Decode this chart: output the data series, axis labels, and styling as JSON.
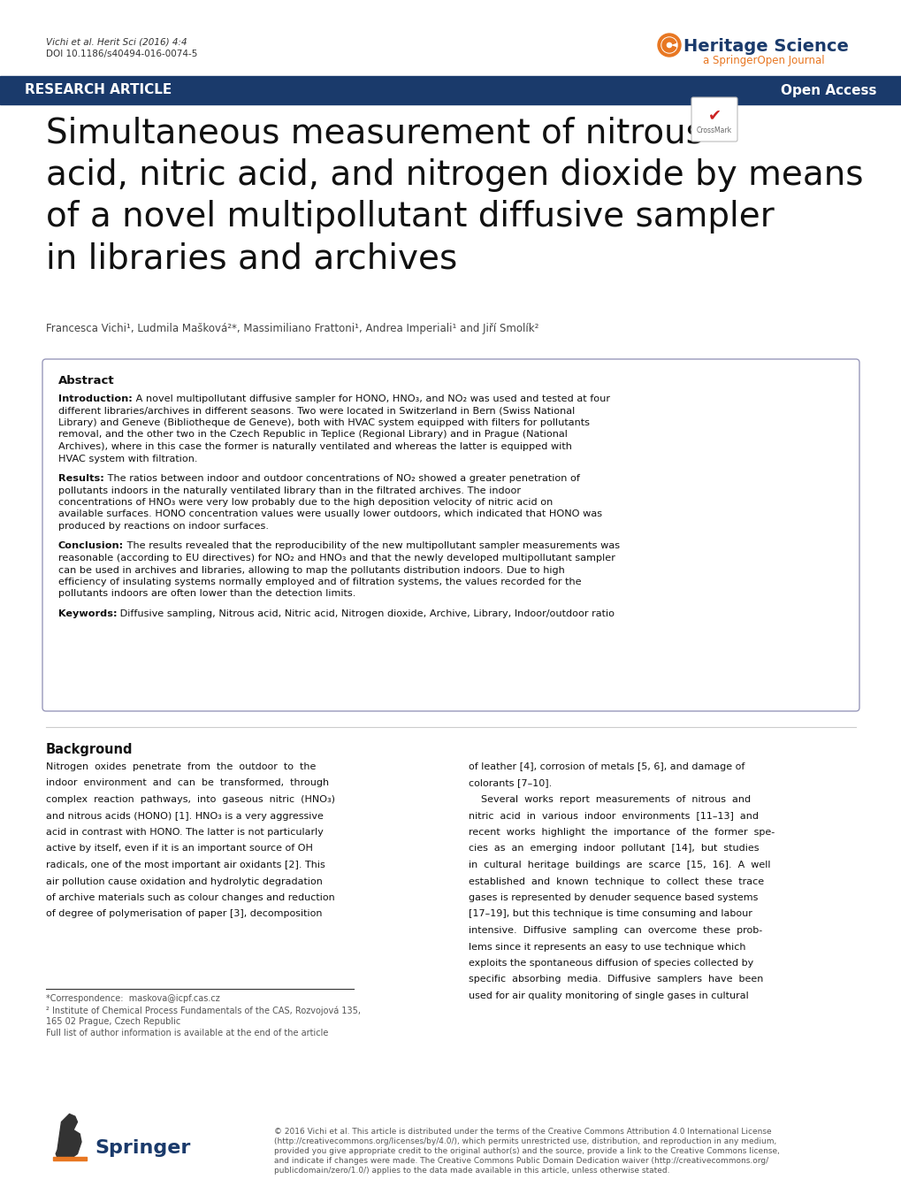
{
  "bg_color": "#ffffff",
  "header_bar_color": "#1a3a6b",
  "header_text_color": "#ffffff",
  "header_left": "RESEARCH ARTICLE",
  "header_right": "Open Access",
  "journal_name": "Heritage Science",
  "journal_subtitle": "a SpringerOpen Journal",
  "journal_name_color": "#1a3a6b",
  "journal_subtitle_color": "#e87722",
  "journal_icon_color": "#e87722",
  "citation_line1": "Vichi et al. Herit Sci (2016) 4:4",
  "citation_line2": "DOI 10.1186/s40494-016-0074-5",
  "citation_color": "#333333",
  "title_line1": "Simultaneous measurement of nitrous",
  "title_line2": "acid, nitric acid, and nitrogen dioxide by means",
  "title_line3": "of a novel multipollutant diffusive sampler",
  "title_line4": "in libraries and archives",
  "title_color": "#111111",
  "title_fontsize": 28,
  "authors": "Francesca Vichi¹, Ludmila Mašková²*, Massimiliano Frattoni¹, Andrea Imperiali¹ and Jiří Smolík²",
  "authors_color": "#444444",
  "abstract_title": "Abstract",
  "abstract_intro_bold": "Introduction:",
  "abstract_intro_text": " A novel multipollutant diffusive sampler for HONO, HNO₃, and NO₂ was used and tested at four different libraries/archives in different seasons. Two were located in Switzerland in Bern (Swiss National Library) and Geneve (Bibliotheque de Geneve), both with HVAC system equipped with filters for pollutants removal, and the other two in the Czech Republic in Teplice (Regional Library) and in Prague (National Archives), where in this case the former is naturally ventilated and whereas the latter is equipped with HVAC system with filtration.",
  "abstract_results_bold": "Results:",
  "abstract_results_text": " The ratios between indoor and outdoor concentrations of NO₂ showed a greater penetration of pollutants indoors in the naturally ventilated library than in the filtrated archives. The indoor concentrations of HNO₃ were very low probably due to the high deposition velocity of nitric acid on available surfaces. HONO concentration values were usually lower outdoors, which indicated that HONO was produced by reactions on indoor surfaces.",
  "abstract_conclusion_bold": "Conclusion:",
  "abstract_conclusion_text": " The results revealed that the reproducibility of the new multipollutant sampler measurements was reasonable (according to EU directives) for NO₂ and HNO₃ and that the newly developed multipollutant sampler can be used in archives and libraries, allowing to map the pollutants distribution indoors. Due to high efficiency of insulating systems normally employed and of filtration systems, the values recorded for the pollutants indoors are often lower than the detection limits.",
  "abstract_keywords_bold": "Keywords:",
  "abstract_keywords_text": " Diffusive sampling, Nitrous acid, Nitric acid, Nitrogen dioxide, Archive, Library, Indoor/outdoor ratio",
  "background_title": "Background",
  "background_left_lines": [
    "Nitrogen  oxides  penetrate  from  the  outdoor  to  the",
    "indoor  environment  and  can  be  transformed,  through",
    "complex  reaction  pathways,  into  gaseous  nitric  (HNO₃)",
    "and nitrous acids (HONO) [1]. HNO₃ is a very aggressive",
    "acid in contrast with HONO. The latter is not particularly",
    "active by itself, even if it is an important source of OH",
    "radicals, one of the most important air oxidants [2]. This",
    "air pollution cause oxidation and hydrolytic degradation",
    "of archive materials such as colour changes and reduction",
    "of degree of polymerisation of paper [3], decomposition"
  ],
  "background_right_lines": [
    "of leather [4], corrosion of metals [5, 6], and damage of",
    "colorants [7–10].",
    "    Several  works  report  measurements  of  nitrous  and",
    "nitric  acid  in  various  indoor  environments  [11–13]  and",
    "recent  works  highlight  the  importance  of  the  former  spe-",
    "cies  as  an  emerging  indoor  pollutant  [14],  but  studies",
    "in  cultural  heritage  buildings  are  scarce  [15,  16].  A  well",
    "established  and  known  technique  to  collect  these  trace",
    "gases is represented by denuder sequence based systems",
    "[17–19], but this technique is time consuming and labour",
    "intensive.  Diffusive  sampling  can  overcome  these  prob-",
    "lems since it represents an easy to use technique which",
    "exploits the spontaneous diffusion of species collected by",
    "specific  absorbing  media.  Diffusive  samplers  have  been",
    "used for air quality monitoring of single gases in cultural"
  ],
  "footnote_line1": "*Correspondence:  maskova@icpf.cas.cz",
  "footnote_line2": "² Institute of Chemical Process Fundamentals of the CAS, Rozvojová 135,",
  "footnote_line3": "165 02 Prague, Czech Republic",
  "footnote_line4": "Full list of author information is available at the end of the article",
  "footer_springer_color": "#e87722",
  "footer_springer_text_color": "#1a3a6b",
  "footer_text_line1": "© 2016 Vichi et al. This article is distributed under the terms of the Creative Commons Attribution 4.0 International License",
  "footer_text_line2": "(http://creativecommons.org/licenses/by/4.0/), which permits unrestricted use, distribution, and reproduction in any medium,",
  "footer_text_line3": "provided you give appropriate credit to the original author(s) and the source, provide a link to the Creative Commons license,",
  "footer_text_line4": "and indicate if changes were made. The Creative Commons Public Domain Dedication waiver (http://creativecommons.org/",
  "footer_text_line5": "publicdomain/zero/1.0/) applies to the data made available in this article, unless otherwise stated.",
  "footer_text_color": "#555555",
  "link_color": "#3355aa"
}
